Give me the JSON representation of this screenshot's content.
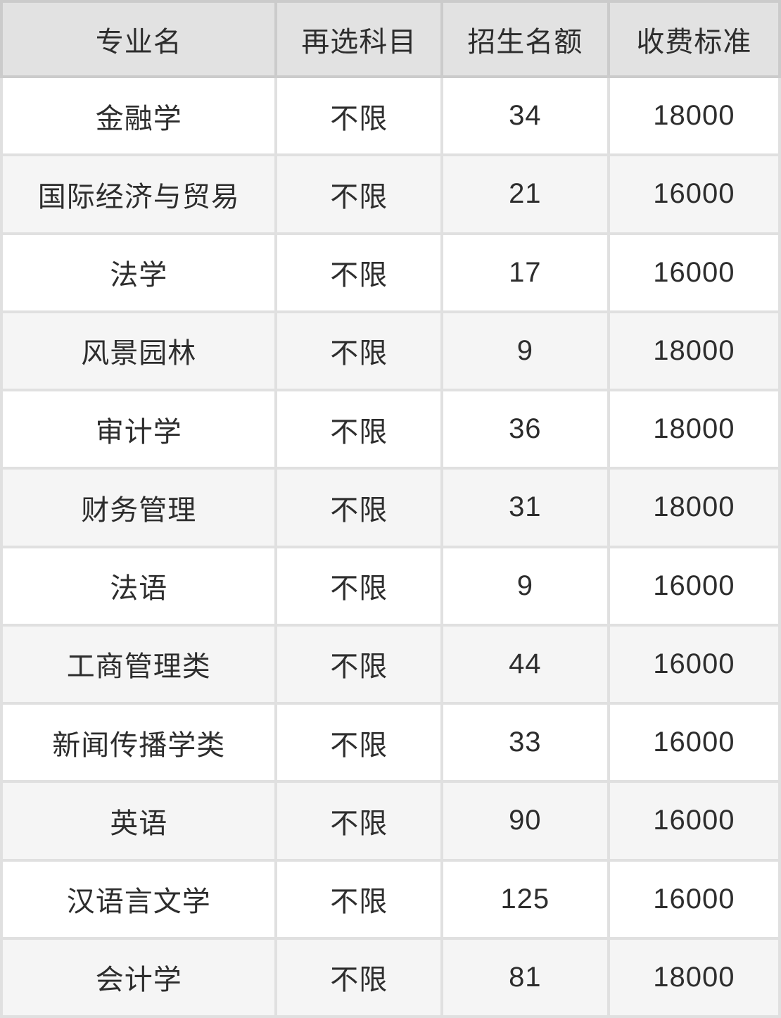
{
  "chart_data": {
    "type": "table",
    "title": "",
    "columns": [
      "专业名",
      "再选科目",
      "招生名额",
      "收费标准"
    ],
    "rows": [
      {
        "major": "金融学",
        "subject": "不限",
        "quota": "34",
        "fee": "18000"
      },
      {
        "major": "国际经济与贸易",
        "subject": "不限",
        "quota": "21",
        "fee": "16000"
      },
      {
        "major": "法学",
        "subject": "不限",
        "quota": "17",
        "fee": "16000"
      },
      {
        "major": "风景园林",
        "subject": "不限",
        "quota": "9",
        "fee": "18000"
      },
      {
        "major": "审计学",
        "subject": "不限",
        "quota": "36",
        "fee": "18000"
      },
      {
        "major": "财务管理",
        "subject": "不限",
        "quota": "31",
        "fee": "18000"
      },
      {
        "major": "法语",
        "subject": "不限",
        "quota": "9",
        "fee": "16000"
      },
      {
        "major": "工商管理类",
        "subject": "不限",
        "quota": "44",
        "fee": "16000"
      },
      {
        "major": "新闻传播学类",
        "subject": "不限",
        "quota": "33",
        "fee": "16000"
      },
      {
        "major": "英语",
        "subject": "不限",
        "quota": "90",
        "fee": "16000"
      },
      {
        "major": "汉语言文学",
        "subject": "不限",
        "quota": "125",
        "fee": "16000"
      },
      {
        "major": "会计学",
        "subject": "不限",
        "quota": "81",
        "fee": "18000"
      }
    ],
    "layout": {
      "header_bg": "#e2e2e2",
      "row_bg_odd": "#ffffff",
      "row_bg_even": "#f5f5f5",
      "gridline_color": "#e0e0e0",
      "header_gridline_color": "#cbcbcb",
      "text_color": "#2d2d2d"
    }
  }
}
